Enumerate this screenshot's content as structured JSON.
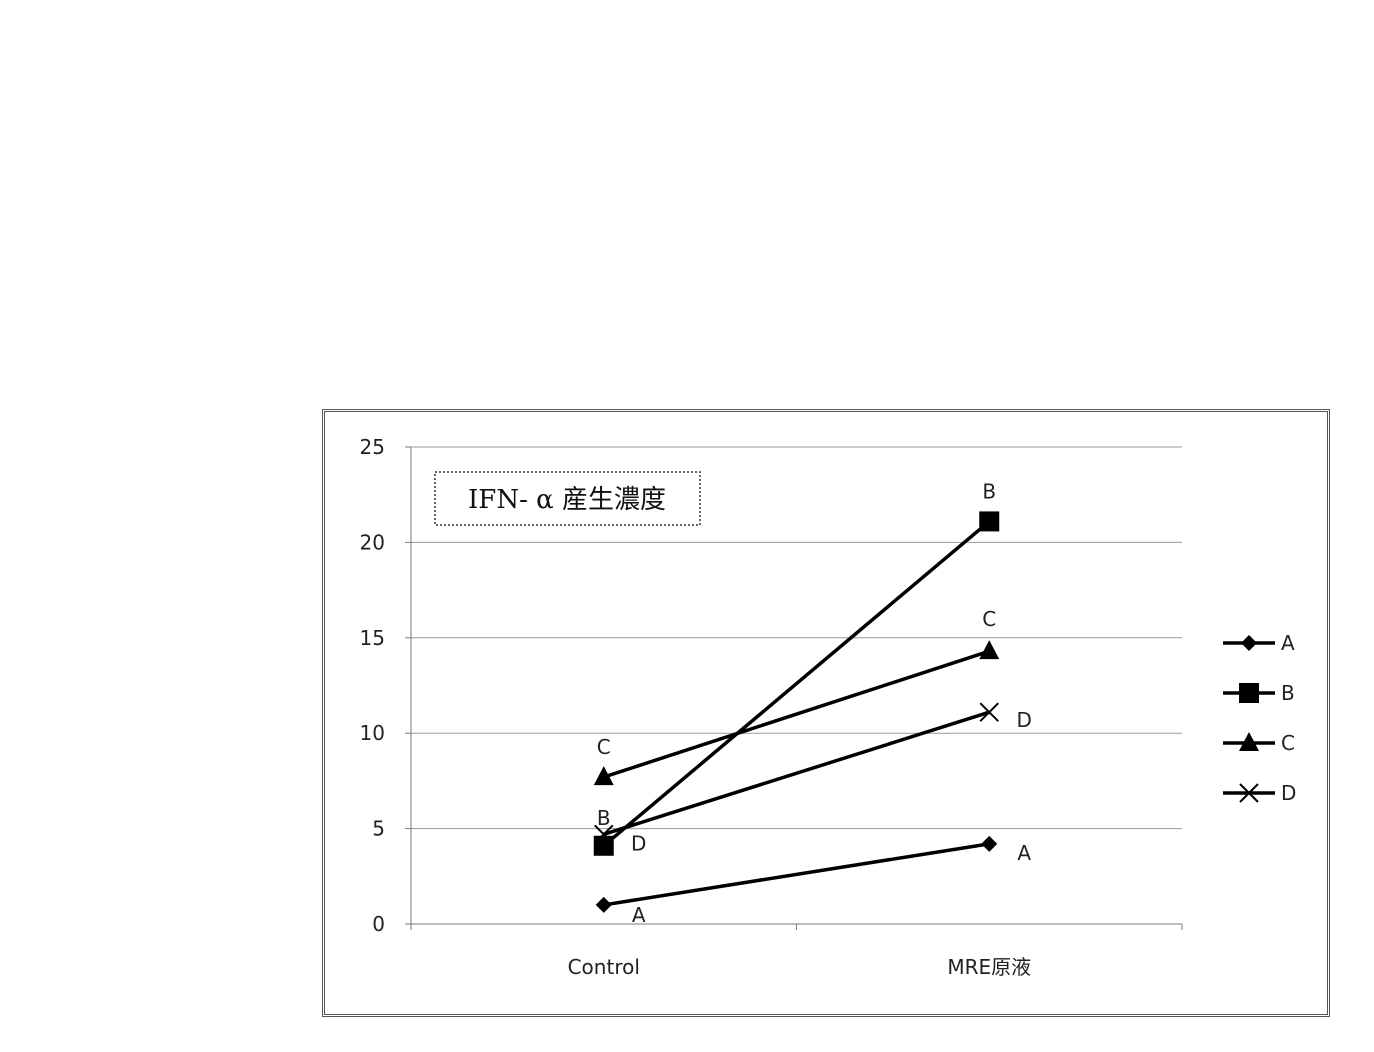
{
  "chart_data": {
    "type": "line",
    "title": "IFN- α 産生濃度",
    "xlabel": "",
    "ylabel": "",
    "categories": [
      "Control",
      "MRE原液"
    ],
    "ylim": [
      0,
      25
    ],
    "yticks": [
      0,
      5,
      10,
      15,
      20,
      25
    ],
    "grid": true,
    "legend_position": "right",
    "series": [
      {
        "name": "A",
        "marker": "diamond",
        "values": [
          1.0,
          4.2
        ],
        "point_labels": [
          "A",
          "A"
        ]
      },
      {
        "name": "B",
        "marker": "square",
        "values": [
          4.1,
          21.1
        ],
        "point_labels": [
          "B",
          "B"
        ]
      },
      {
        "name": "C",
        "marker": "triangle",
        "values": [
          7.7,
          14.3
        ],
        "point_labels": [
          "C",
          "C"
        ]
      },
      {
        "name": "D",
        "marker": "x",
        "values": [
          4.7,
          11.1
        ],
        "point_labels": [
          "D",
          "D"
        ]
      }
    ],
    "colors": {
      "line": "#000000",
      "grid": "#9a9a9a",
      "axis": "#7a7a7a"
    }
  }
}
